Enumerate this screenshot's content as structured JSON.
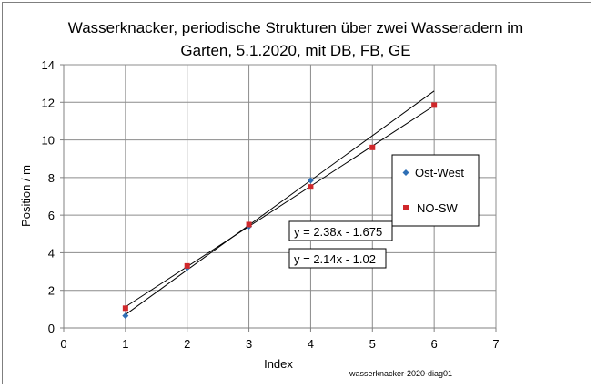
{
  "chart_data": {
    "type": "scatter",
    "title_lines": [
      "Wasserknacker, periodische Strukturen über zwei Wasseradern im",
      "Garten,  5.1.2020, mit  DB, FB, GE"
    ],
    "xlabel": "Index",
    "ylabel": "Position / m",
    "xlim": [
      0,
      7
    ],
    "ylim": [
      0,
      14
    ],
    "xticks": [
      0,
      1,
      2,
      3,
      4,
      5,
      6,
      7
    ],
    "yticks": [
      0,
      2,
      4,
      6,
      8,
      10,
      12,
      14
    ],
    "grid": true,
    "legend_position": "right",
    "series": [
      {
        "name": "Ost-West",
        "marker": "diamond",
        "color": "#2e6fb5",
        "x": [
          1,
          2,
          3,
          4
        ],
        "y": [
          0.65,
          3.2,
          5.4,
          7.85
        ],
        "trendline": {
          "slope": 2.38,
          "intercept": -1.675,
          "x_range": [
            1,
            6
          ],
          "label": "y = 2.38x - 1.675"
        }
      },
      {
        "name": "NO-SW",
        "marker": "square",
        "color": "#d0282b",
        "x": [
          1,
          2,
          3,
          4,
          5,
          6
        ],
        "y": [
          1.05,
          3.3,
          5.5,
          7.5,
          9.6,
          11.85
        ],
        "trendline": {
          "slope": 2.14,
          "intercept": -1.02,
          "x_range": [
            1,
            6
          ],
          "label": "y = 2.14x - 1.02"
        }
      }
    ],
    "footnote": "wasserknacker-2020-diag01"
  }
}
